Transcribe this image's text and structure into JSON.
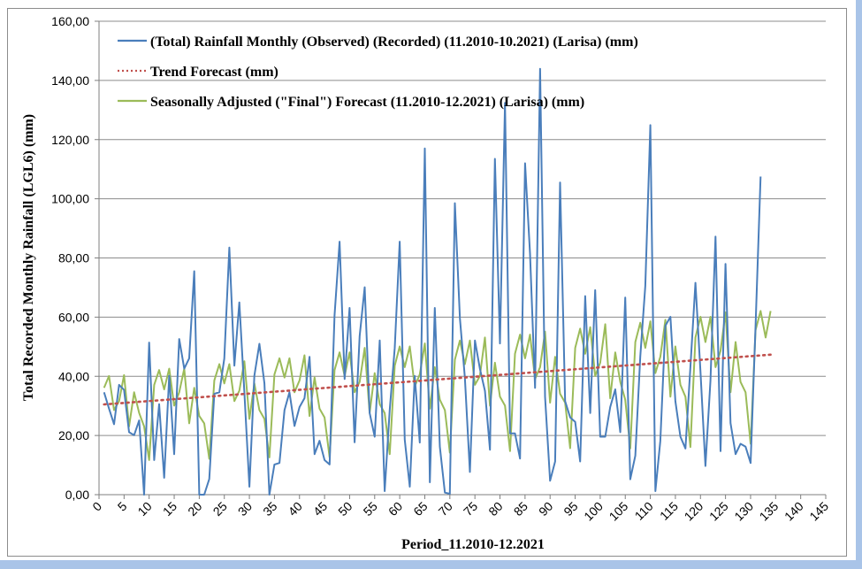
{
  "chart_data": {
    "type": "line",
    "title": "",
    "xlabel": "Period_11.2010-12.2021",
    "ylabel": "Total Recorded Monthly Rainfall (LGL6) (mm)",
    "xlim": [
      0,
      145
    ],
    "ylim": [
      0,
      160
    ],
    "x_ticks": [
      "0",
      "5",
      "10",
      "15",
      "20",
      "25",
      "30",
      "35",
      "40",
      "45",
      "50",
      "55",
      "60",
      "65",
      "70",
      "75",
      "80",
      "85",
      "90",
      "95",
      "100",
      "105",
      "110",
      "115",
      "120",
      "125",
      "130",
      "135",
      "140",
      "145"
    ],
    "y_ticks": [
      "0,00",
      "20,00",
      "40,00",
      "60,00",
      "80,00",
      "100,00",
      "120,00",
      "140,00",
      "160,00"
    ],
    "grid": "horizontal",
    "legend_position": "top-left",
    "series": [
      {
        "name": "(Total) Rainfall Monthly (Observed) (Recorded) (11.2010-10.2021) (Larisa) (mm)",
        "color": "#4a7ebb",
        "style": "solid",
        "x_start": 1,
        "values": [
          34.6,
          29.1,
          23.8,
          37.1,
          35.4,
          21.1,
          20.1,
          25.1,
          0,
          51.4,
          11.7,
          30.6,
          5.7,
          40.2,
          13.7,
          52.6,
          42.6,
          46.1,
          75.5,
          0,
          0,
          5.3,
          34.1,
          34.6,
          46,
          83.5,
          43.6,
          65,
          34.6,
          2.7,
          40.2,
          51,
          37.6,
          0,
          10.2,
          10.7,
          28.6,
          34.6,
          23.2,
          29.6,
          32.6,
          46.6,
          13.7,
          18.2,
          11.7,
          10.2,
          60.6,
          85.5,
          39.1,
          63.1,
          17.7,
          53.6,
          70.1,
          27.6,
          19.6,
          52.1,
          1.2,
          28.6,
          49.6,
          85.5,
          18.6,
          2.7,
          40.1,
          17.6,
          117,
          4.2,
          63.1,
          16.2,
          0.7,
          0.3,
          98.5,
          59.6,
          39.6,
          7.7,
          52.1,
          42.6,
          35.1,
          15.2,
          113.5,
          51.1,
          132.4,
          20.7,
          20.7,
          12.2,
          112,
          81.5,
          36.1,
          143.9,
          33.1,
          4.7,
          11.2,
          105.5,
          31.6,
          26.1,
          24.6,
          11.2,
          67.1,
          27.6,
          69.1,
          19.6,
          19.6,
          29.6,
          35.6,
          21.1,
          66.6,
          5.2,
          13.2,
          46.6,
          70.6,
          124.9,
          1.2,
          18.2,
          57.1,
          60.1,
          31.6,
          19.6,
          15.6,
          43.1,
          71.6,
          41.6,
          9.7,
          38.6,
          87.2,
          14.7,
          78,
          24.2,
          13.7,
          17.2,
          16.2,
          10.7,
          57,
          107.5
        ]
      },
      {
        "name": "Trend Forecast (mm)",
        "color": "#c0504d",
        "style": "dotted",
        "x_start": 1,
        "x_end": 134,
        "start_value": 30.5,
        "end_value": 47.3
      },
      {
        "name": "Seasonally Adjusted (\"Final\") Forecast (11.2010-12.2021) (Larisa) (mm)",
        "color": "#9bbb59",
        "style": "solid",
        "x_start": 1,
        "values": [
          36.1,
          40.1,
          28.6,
          31.6,
          40.4,
          23.1,
          34.6,
          27.6,
          23.1,
          11.7,
          37.1,
          42.1,
          35.6,
          42.6,
          30.1,
          34.6,
          42.6,
          24.1,
          36.1,
          26.6,
          24.1,
          12.1,
          38.6,
          44.1,
          37.6,
          44.1,
          31.6,
          35.1,
          45.1,
          25.6,
          37.6,
          28.6,
          25.6,
          12.6,
          40.6,
          46.1,
          39.6,
          46.1,
          34.6,
          38.6,
          47.1,
          26.6,
          39.6,
          29.1,
          26.1,
          12.6,
          42.1,
          48.1,
          40.1,
          48.1,
          34.6,
          38.1,
          49.6,
          27.6,
          41.1,
          30.6,
          27.6,
          13.7,
          43.6,
          50.1,
          43.1,
          50.1,
          36.6,
          40.6,
          51.1,
          29.1,
          43.1,
          32.1,
          28.6,
          14.2,
          45.6,
          52.1,
          44.1,
          52.1,
          37.1,
          40.1,
          53.1,
          30.1,
          44.6,
          33.1,
          30.1,
          14.7,
          47.6,
          54.1,
          46.1,
          54.1,
          39.1,
          43.1,
          55.1,
          31.1,
          46.6,
          34.1,
          31.1,
          15.7,
          49.6,
          56.1,
          47.6,
          56.6,
          40.1,
          44.6,
          57.6,
          32.6,
          48.1,
          38.1,
          32.1,
          15.6,
          51.6,
          58.1,
          49.6,
          58.6,
          41.1,
          46.6,
          59.1,
          33.1,
          50.1,
          37.1,
          33.1,
          16.1,
          53.1,
          60.1,
          51.6,
          60.1,
          43.1,
          48.6,
          61.6,
          34.6,
          51.6,
          38.1,
          34.6,
          17.2,
          55.6,
          62.1,
          53.1,
          62.1
        ]
      }
    ]
  }
}
